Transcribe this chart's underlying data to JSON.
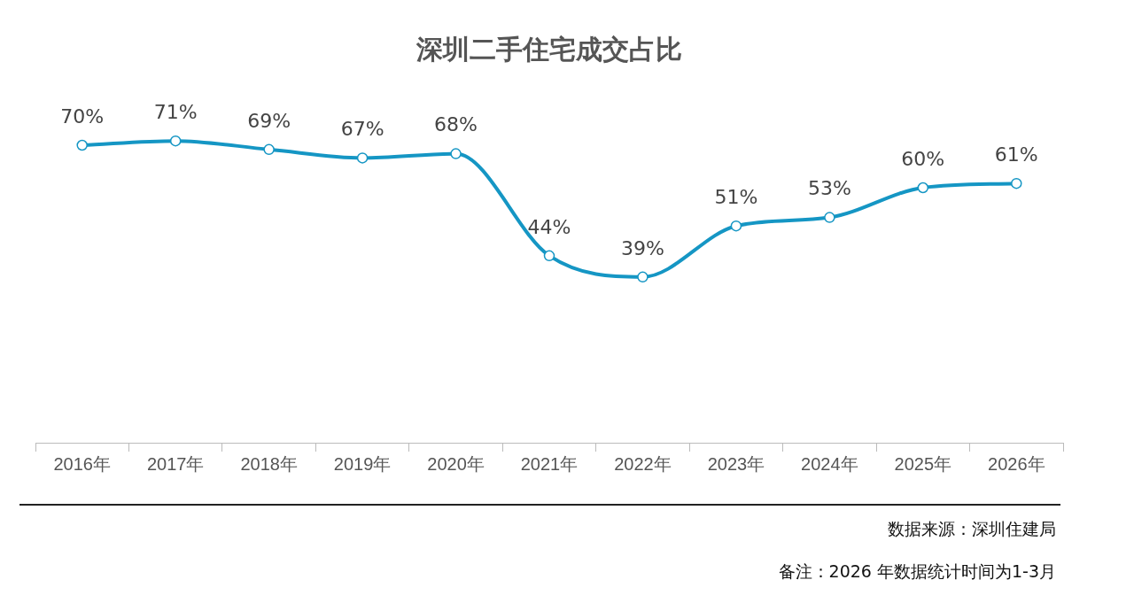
{
  "chart_data": {
    "type": "line",
    "title": "深圳二手住宅成交占比",
    "categories": [
      "2016年",
      "2017年",
      "2018年",
      "2019年",
      "2020年",
      "2021年",
      "2022年",
      "2023年",
      "2024年",
      "2025年",
      "2026年"
    ],
    "series": [
      {
        "color": "#1596c4",
        "values": [
          70,
          71,
          69,
          67,
          68,
          44,
          39,
          51,
          53,
          60,
          61
        ],
        "value_labels": [
          "70%",
          "71%",
          "69%",
          "67%",
          "68%",
          "44%",
          "39%",
          "51%",
          "53%",
          "60%",
          "61%"
        ]
      }
    ],
    "tick_labels": "x",
    "grid": false,
    "legend": false,
    "marker": "circle",
    "line_style": "solid",
    "annotations": [
      "数据来源：深圳住建局",
      "备注：2026 年数据统计时间为1-3月"
    ]
  }
}
